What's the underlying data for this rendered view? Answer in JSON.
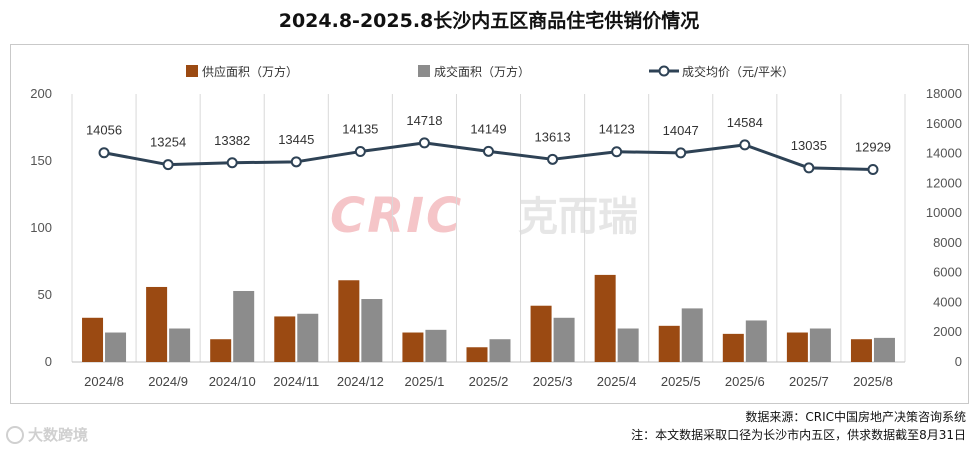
{
  "title": "2024.8-2025.8长沙内五区商品住宅供销价情况",
  "legend": {
    "supply": "供应面积（万方）",
    "deal": "成交面积（万方）",
    "price": "成交均价（元/平米）"
  },
  "watermark": {
    "latin": "CRIC",
    "chinese": "克而瑞"
  },
  "source_line": "数据来源：CRIC中国房地产决策咨询系统",
  "note_line": "注：本文数据采取口径为长沙市内五区，供求数据截至8月31日",
  "corner_brand": "大数跨境",
  "colors": {
    "supply": "#9b4a12",
    "deal": "#8c8c8c",
    "price_line": "#2e4255",
    "grid": "#d9d9d9"
  },
  "chart_data": {
    "type": "bar",
    "categories": [
      "2024/8",
      "2024/9",
      "2024/10",
      "2024/11",
      "2024/12",
      "2025/1",
      "2025/2",
      "2025/3",
      "2025/4",
      "2025/5",
      "2025/6",
      "2025/7",
      "2025/8"
    ],
    "series": [
      {
        "name": "供应面积（万方）",
        "axis": "left",
        "type": "bar",
        "values": [
          33,
          56,
          17,
          34,
          61,
          22,
          11,
          42,
          65,
          27,
          21,
          22,
          17
        ]
      },
      {
        "name": "成交面积（万方）",
        "axis": "left",
        "type": "bar",
        "values": [
          22,
          25,
          53,
          36,
          47,
          24,
          17,
          33,
          25,
          40,
          31,
          25,
          18
        ]
      },
      {
        "name": "成交均价（元/平米）",
        "axis": "right",
        "type": "line",
        "values": [
          14056,
          13254,
          13382,
          13445,
          14135,
          14718,
          14149,
          13613,
          14123,
          14047,
          14584,
          13035,
          12929
        ]
      }
    ],
    "left_axis": {
      "min": 0,
      "max": 200,
      "ticks": [
        0,
        50,
        100,
        150,
        200
      ]
    },
    "right_axis": {
      "min": 0,
      "max": 18000,
      "ticks": [
        0,
        2000,
        4000,
        6000,
        8000,
        10000,
        12000,
        14000,
        16000,
        18000
      ]
    },
    "grid": "vertical",
    "legend_position": "top"
  }
}
